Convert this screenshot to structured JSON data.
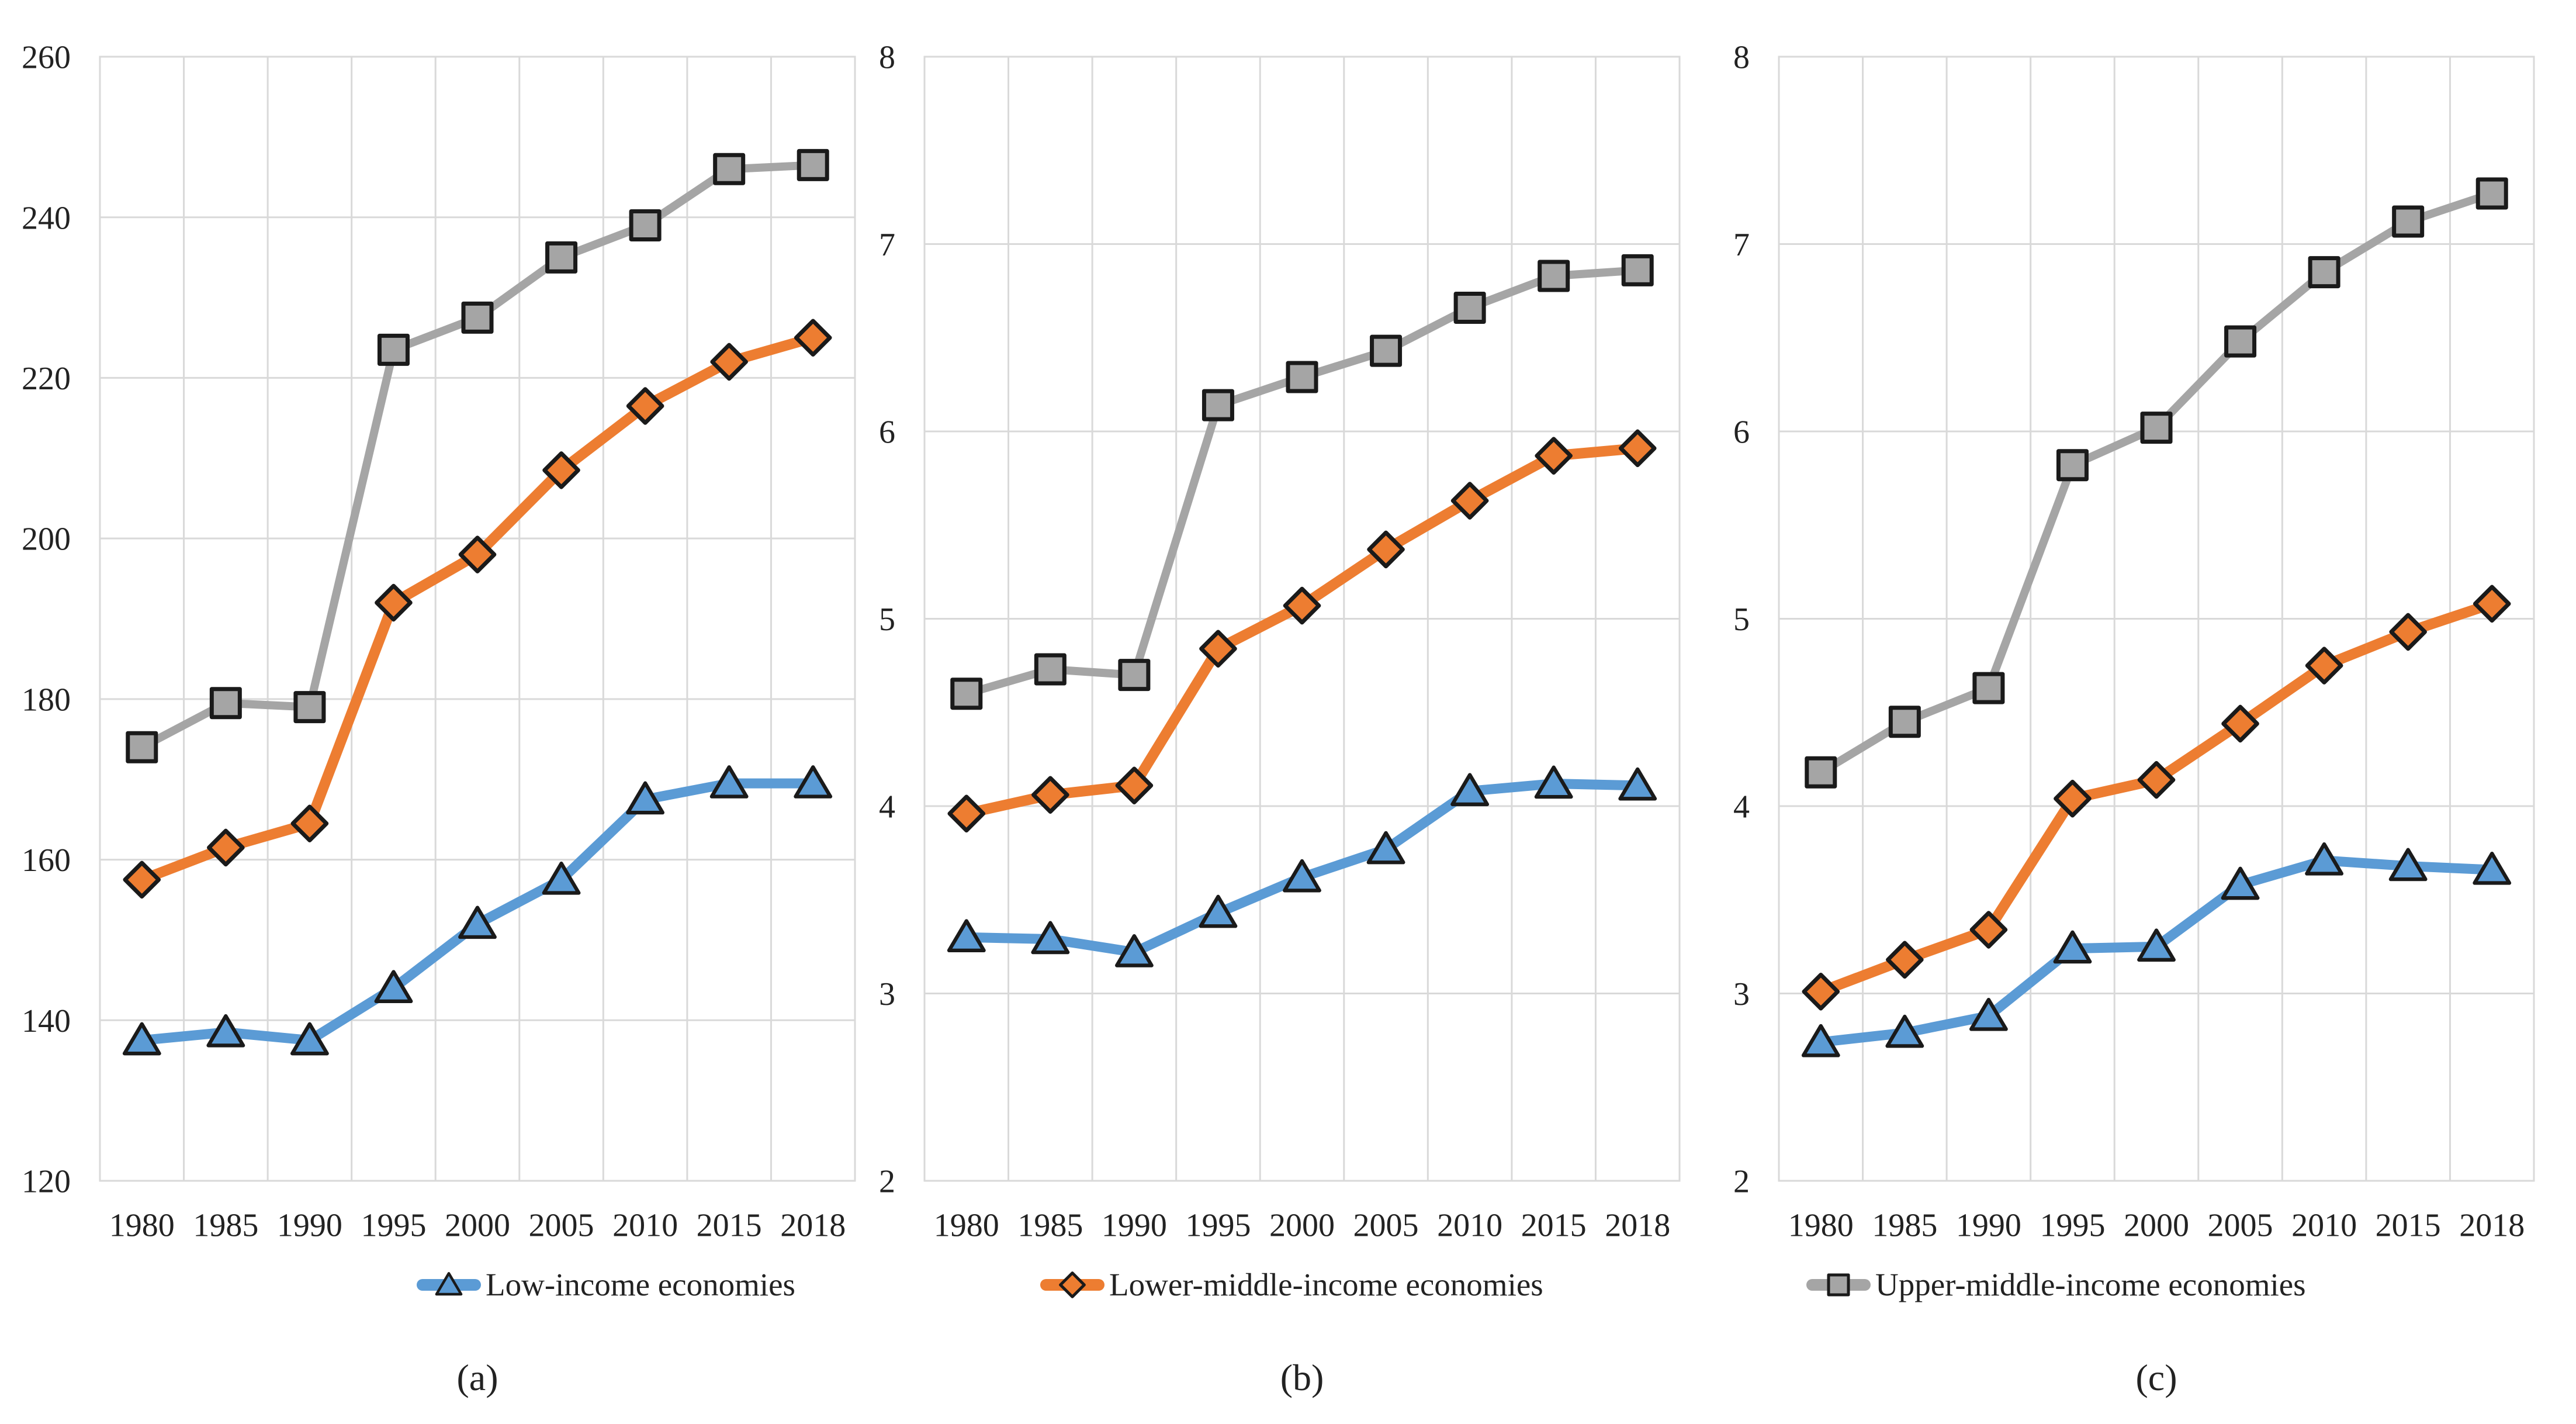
{
  "figure": {
    "background": "#FFFFFF",
    "text_color": "#222222",
    "gridline_color": "#D9D9D9",
    "marker_border_color": "#1A1A1A"
  },
  "chart_data": [
    {
      "type": "line",
      "panel": "a",
      "caption": "(a)",
      "categories": [
        "1980",
        "1985",
        "1990",
        "1995",
        "2000",
        "2005",
        "2010",
        "2015",
        "2018"
      ],
      "ylim": [
        120,
        260
      ],
      "yticks": [
        120,
        140,
        160,
        180,
        200,
        220,
        240,
        260
      ],
      "grid": true,
      "legend_position": "bottom",
      "legend_series_index": 0,
      "series": [
        {
          "name": "Low-income economies",
          "marker": "triangle",
          "color": "#5B9BD5",
          "values": [
            137.5,
            138.5,
            137.5,
            144,
            152,
            157.5,
            167.5,
            169.5,
            169.5
          ]
        },
        {
          "name": "Lower-middle-income economies",
          "marker": "diamond",
          "color": "#ED7D31",
          "values": [
            157.5,
            161.5,
            164.5,
            192,
            198,
            208.5,
            216.5,
            222,
            225
          ]
        },
        {
          "name": "Upper-middle-income economies",
          "marker": "square",
          "color": "#A5A5A5",
          "values": [
            174,
            179.5,
            179,
            223.5,
            227.5,
            235,
            239,
            246,
            246.5
          ]
        }
      ]
    },
    {
      "type": "line",
      "panel": "b",
      "caption": "(b)",
      "categories": [
        "1980",
        "1985",
        "1990",
        "1995",
        "2000",
        "2005",
        "2010",
        "2015",
        "2018"
      ],
      "ylim": [
        2,
        8
      ],
      "yticks": [
        2,
        3,
        4,
        5,
        6,
        7,
        8
      ],
      "grid": true,
      "legend_position": "bottom",
      "legend_series_index": 1,
      "series": [
        {
          "name": "Low-income economies",
          "marker": "triangle",
          "color": "#5B9BD5",
          "values": [
            3.3,
            3.29,
            3.22,
            3.43,
            3.62,
            3.77,
            4.08,
            4.12,
            4.11
          ]
        },
        {
          "name": "Lower-middle-income economies",
          "marker": "diamond",
          "color": "#ED7D31",
          "values": [
            3.96,
            4.06,
            4.11,
            4.84,
            5.07,
            5.37,
            5.63,
            5.87,
            5.91
          ]
        },
        {
          "name": "Upper-middle-income economies",
          "marker": "square",
          "color": "#A5A5A5",
          "values": [
            4.6,
            4.73,
            4.7,
            6.14,
            6.29,
            6.43,
            6.66,
            6.83,
            6.86
          ]
        }
      ]
    },
    {
      "type": "line",
      "panel": "c",
      "caption": "(c)",
      "categories": [
        "1980",
        "1985",
        "1990",
        "1995",
        "2000",
        "2005",
        "2010",
        "2015",
        "2018"
      ],
      "ylim": [
        2,
        8
      ],
      "yticks": [
        2,
        3,
        4,
        5,
        6,
        7,
        8
      ],
      "grid": true,
      "legend_position": "bottom",
      "legend_series_index": 2,
      "series": [
        {
          "name": "Low-income economies",
          "marker": "triangle",
          "color": "#5B9BD5",
          "values": [
            2.74,
            2.79,
            2.88,
            3.24,
            3.25,
            3.58,
            3.71,
            3.68,
            3.66
          ]
        },
        {
          "name": "Lower-middle-income economies",
          "marker": "diamond",
          "color": "#ED7D31",
          "values": [
            3.01,
            3.18,
            3.34,
            4.04,
            4.14,
            4.44,
            4.75,
            4.93,
            5.08
          ]
        },
        {
          "name": "Upper-middle-income economies",
          "marker": "square",
          "color": "#A5A5A5",
          "values": [
            4.18,
            4.45,
            4.63,
            5.82,
            6.02,
            6.48,
            6.85,
            7.12,
            7.27
          ]
        }
      ]
    }
  ]
}
